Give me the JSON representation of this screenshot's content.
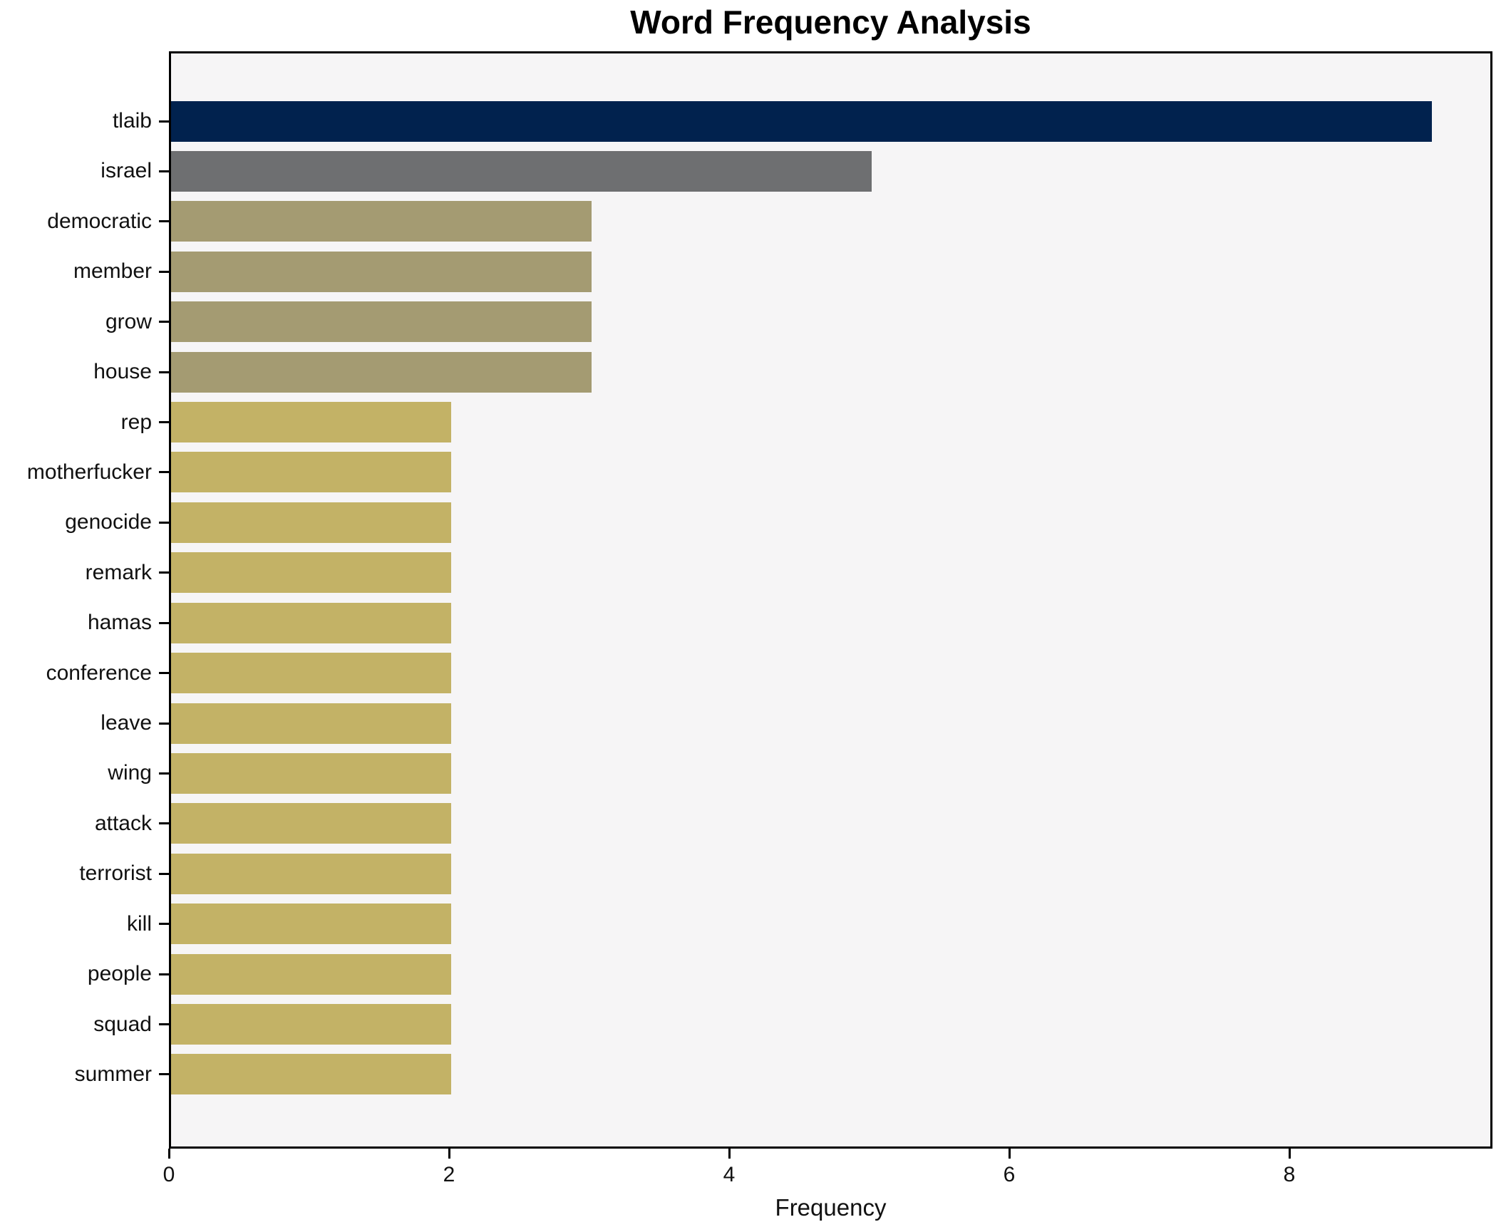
{
  "chart_data": {
    "type": "bar",
    "orientation": "horizontal",
    "title": "Word Frequency Analysis",
    "xlabel": "Frequency",
    "ylabel": "",
    "categories": [
      "tlaib",
      "israel",
      "democratic",
      "member",
      "grow",
      "house",
      "rep",
      "motherfucker",
      "genocide",
      "remark",
      "hamas",
      "conference",
      "leave",
      "wing",
      "attack",
      "terrorist",
      "kill",
      "people",
      "squad",
      "summer"
    ],
    "values": [
      9,
      5,
      3,
      3,
      3,
      3,
      2,
      2,
      2,
      2,
      2,
      2,
      2,
      2,
      2,
      2,
      2,
      2,
      2,
      2
    ],
    "bar_colors": [
      "#01224e",
      "#6e6f71",
      "#a49b72",
      "#a49b72",
      "#a49b72",
      "#a49b72",
      "#c3b266",
      "#c3b266",
      "#c3b266",
      "#c3b266",
      "#c3b266",
      "#c3b266",
      "#c3b266",
      "#c3b266",
      "#c3b266",
      "#c3b266",
      "#c3b266",
      "#c3b266",
      "#c3b266",
      "#c3b266"
    ],
    "xlim": [
      0,
      9.45
    ],
    "xticks": [
      0,
      2,
      4,
      6,
      8
    ],
    "grid": false,
    "legend": false,
    "colors": {
      "plot_background": "#f6f5f6",
      "figure_background": "#ffffff",
      "spine": "#000000",
      "text": "#111111"
    }
  }
}
